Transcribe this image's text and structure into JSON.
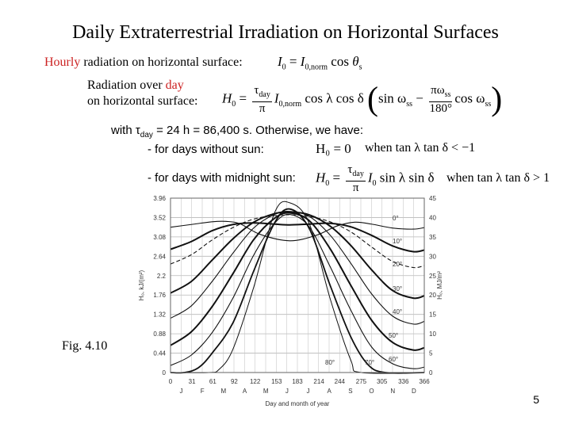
{
  "slide": {
    "title": "Daily Extraterrestrial Irradiation on Horizontal Surfaces",
    "hourly_label_highlight": "Hourly",
    "hourly_label_rest": " radiation on horizontal surface:",
    "day_label_pre": "Radiation over ",
    "day_label_highlight": "day",
    "day_label_line2": "on horizontal surface:",
    "with_text": "with τ",
    "with_text_rest": " = 24 h = 86,400 s. Otherwise, we have:",
    "without_sun_label": "- for days without sun:",
    "without_sun_eq": "H₀ = 0",
    "without_sun_cond": "when tan λ tan δ < −1",
    "midnight_sun_label": "- for days with midnight sun:",
    "midnight_sun_cond": "when tan λ tan δ > 1",
    "fig_label": "Fig. 4.10",
    "page_number": "5"
  },
  "chart_data": {
    "type": "line",
    "x_ticks": [
      0,
      31,
      61,
      92,
      122,
      153,
      183,
      214,
      244,
      275,
      305,
      336,
      366
    ],
    "month_labels": [
      "J",
      "F",
      "M",
      "A",
      "M",
      "J",
      "J",
      "A",
      "S",
      "O",
      "N",
      "D"
    ],
    "xlabel": "Day and month of year",
    "y_left_ticks": [
      "0",
      "0.44",
      "0.88",
      "1.32",
      "1.76",
      "2.2",
      "2.64",
      "3.08",
      "3.52",
      "3.96"
    ],
    "ylabel_left": "H₀, kJ/(m²)",
    "y_right_ticks": [
      "0",
      "5",
      "10",
      "15",
      "20",
      "25",
      "30",
      "35",
      "40",
      "45"
    ],
    "ylabel_right": "H₀, MJ/m²",
    "ylim": [
      0,
      45
    ],
    "xlim": [
      0,
      366
    ],
    "series": [
      {
        "label": "0°",
        "latitude": 0,
        "weight": 1.1,
        "values": [
          [
            0,
            37.5
          ],
          [
            30,
            38.2
          ],
          [
            60,
            38.9
          ],
          [
            80,
            39.0
          ],
          [
            100,
            38.4
          ],
          [
            130,
            35.6
          ],
          [
            172,
            34.0
          ],
          [
            210,
            35.4
          ],
          [
            240,
            37.8
          ],
          [
            266,
            38.8
          ],
          [
            290,
            38.3
          ],
          [
            320,
            37.3
          ],
          [
            350,
            37.0
          ],
          [
            366,
            37.4
          ]
        ]
      },
      {
        "label": "10°",
        "latitude": 10,
        "weight": 2.0,
        "values": [
          [
            0,
            31.8
          ],
          [
            30,
            33.8
          ],
          [
            60,
            36.6
          ],
          [
            90,
            38.2
          ],
          [
            120,
            38.6
          ],
          [
            150,
            38.3
          ],
          [
            172,
            38.1
          ],
          [
            200,
            38.3
          ],
          [
            230,
            38.5
          ],
          [
            260,
            37.6
          ],
          [
            290,
            35.4
          ],
          [
            320,
            32.7
          ],
          [
            350,
            31.2
          ],
          [
            366,
            31.6
          ]
        ]
      },
      {
        "label": "20°",
        "latitude": 20,
        "weight": 1.1,
        "values": [
          [
            0,
            28.0
          ],
          [
            30,
            30.4
          ],
          [
            60,
            34.2
          ],
          [
            90,
            37.4
          ],
          [
            120,
            39.6
          ],
          [
            150,
            40.5
          ],
          [
            172,
            40.7
          ],
          [
            200,
            40.3
          ],
          [
            230,
            38.9
          ],
          [
            260,
            36.3
          ],
          [
            290,
            32.4
          ],
          [
            320,
            28.7
          ],
          [
            350,
            27.1
          ],
          [
            366,
            27.6
          ]
        ]
      },
      {
        "label": "30°",
        "latitude": 30,
        "weight": 2.0,
        "values": [
          [
            0,
            20.5
          ],
          [
            30,
            23.5
          ],
          [
            60,
            29.0
          ],
          [
            90,
            34.5
          ],
          [
            120,
            38.8
          ],
          [
            150,
            41.0
          ],
          [
            172,
            41.4
          ],
          [
            200,
            40.7
          ],
          [
            230,
            37.8
          ],
          [
            260,
            32.8
          ],
          [
            290,
            26.5
          ],
          [
            320,
            21.2
          ],
          [
            350,
            19.2
          ],
          [
            366,
            19.8
          ]
        ]
      },
      {
        "label": "40°",
        "latitude": 40,
        "weight": 1.1,
        "values": [
          [
            0,
            14.0
          ],
          [
            30,
            17.2
          ],
          [
            60,
            23.5
          ],
          [
            90,
            30.8
          ],
          [
            120,
            37.3
          ],
          [
            150,
            40.8
          ],
          [
            172,
            41.6
          ],
          [
            200,
            40.3
          ],
          [
            230,
            35.5
          ],
          [
            260,
            28.2
          ],
          [
            290,
            20.3
          ],
          [
            320,
            14.6
          ],
          [
            350,
            12.5
          ],
          [
            366,
            13.2
          ]
        ]
      },
      {
        "label": "50°",
        "latitude": 50,
        "weight": 2.0,
        "values": [
          [
            0,
            7.0
          ],
          [
            30,
            10.5
          ],
          [
            60,
            17.0
          ],
          [
            90,
            25.5
          ],
          [
            120,
            34.3
          ],
          [
            150,
            39.8
          ],
          [
            172,
            41.2
          ],
          [
            200,
            39.2
          ],
          [
            230,
            32.0
          ],
          [
            260,
            22.5
          ],
          [
            290,
            13.5
          ],
          [
            320,
            7.8
          ],
          [
            350,
            5.8
          ],
          [
            366,
            6.4
          ]
        ]
      },
      {
        "label": "60°",
        "latitude": 60,
        "weight": 1.1,
        "values": [
          [
            0,
            1.8
          ],
          [
            30,
            4.5
          ],
          [
            60,
            10.3
          ],
          [
            90,
            19.2
          ],
          [
            120,
            30.3
          ],
          [
            150,
            38.5
          ],
          [
            172,
            40.8
          ],
          [
            200,
            37.6
          ],
          [
            230,
            27.4
          ],
          [
            260,
            16.1
          ],
          [
            290,
            6.6
          ],
          [
            320,
            2.3
          ],
          [
            350,
            1.0
          ],
          [
            366,
            1.4
          ]
        ]
      },
      {
        "label": "70°",
        "latitude": 70,
        "weight": 1.8,
        "values": [
          [
            0,
            0
          ],
          [
            20,
            0
          ],
          [
            40,
            1.2
          ],
          [
            60,
            5.0
          ],
          [
            90,
            12.8
          ],
          [
            120,
            26.2
          ],
          [
            150,
            38.6
          ],
          [
            172,
            42.2
          ],
          [
            200,
            37.2
          ],
          [
            230,
            22.6
          ],
          [
            260,
            9.2
          ],
          [
            285,
            2.0
          ],
          [
            310,
            0
          ],
          [
            366,
            0
          ]
        ]
      },
      {
        "label": "80°",
        "latitude": 80,
        "weight": 1.0,
        "values": [
          [
            0,
            0
          ],
          [
            55,
            0
          ],
          [
            70,
            0.8
          ],
          [
            90,
            6.0
          ],
          [
            120,
            22.0
          ],
          [
            150,
            41.2
          ],
          [
            172,
            43.8
          ],
          [
            200,
            38.5
          ],
          [
            230,
            19.2
          ],
          [
            260,
            3.2
          ],
          [
            275,
            0
          ],
          [
            366,
            0
          ]
        ]
      }
    ]
  }
}
